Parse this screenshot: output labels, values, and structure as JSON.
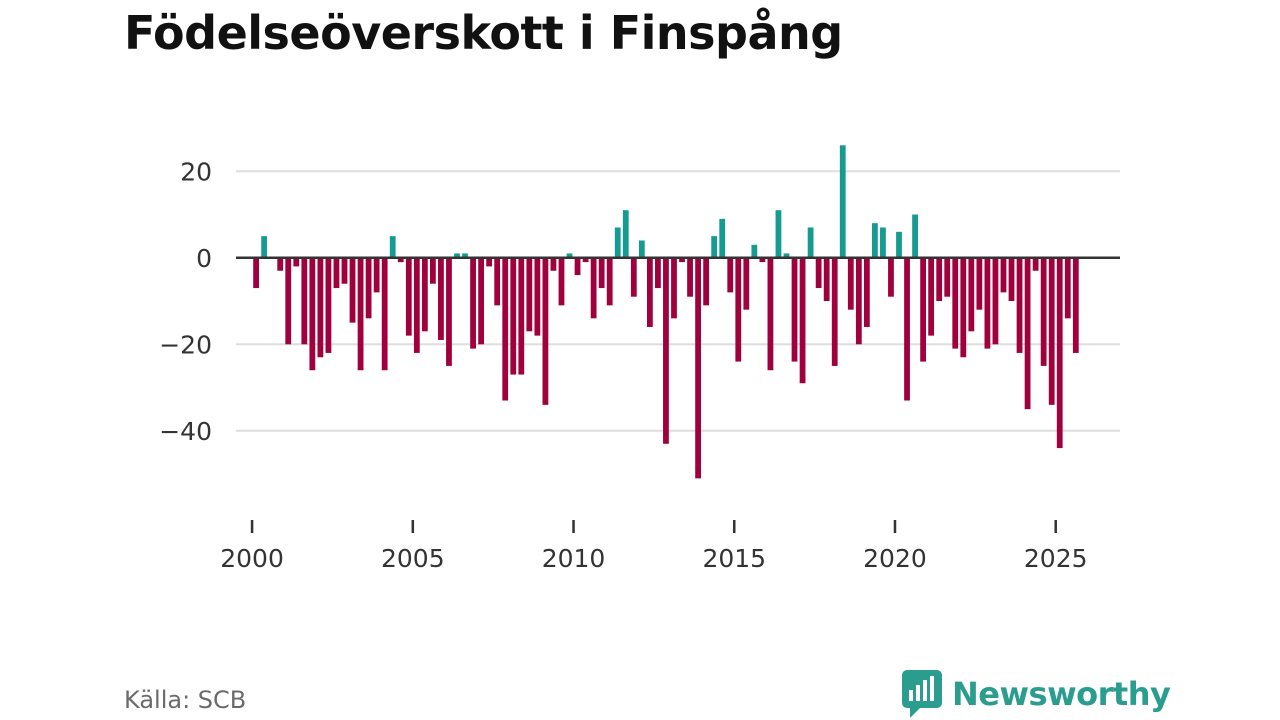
{
  "colors": {
    "positive": "#159b91",
    "negative": "#a0003c",
    "grid": "#dddddd",
    "zero_line": "#333333"
  },
  "source": "Källa: SCB",
  "brand": {
    "name": "Newsworthy",
    "icon": "bar-chart-speech-bubble-icon"
  },
  "chart_data": {
    "type": "bar",
    "title": "Födelseöverskott i Finspång",
    "xlabel": "",
    "ylabel": "",
    "ylim": [
      -56,
      30
    ],
    "xlim": [
      1999.5,
      2027
    ],
    "yticks": [
      20,
      0,
      -20,
      -40
    ],
    "ytick_labels": [
      "20",
      "0",
      "−20",
      "−40"
    ],
    "xticks": [
      2000,
      2005,
      2010,
      2015,
      2020,
      2025
    ],
    "xtick_labels": [
      "2000",
      "2005",
      "2010",
      "2015",
      "2020",
      "2025"
    ],
    "start": 2000.0,
    "step": 0.25,
    "values": [
      -7,
      5,
      0,
      -3,
      -20,
      -2,
      -20,
      -26,
      -23,
      -22,
      -7,
      -6,
      -15,
      -26,
      -14,
      -8,
      -26,
      5,
      -1,
      -18,
      -22,
      -17,
      -6,
      -19,
      -25,
      1,
      1,
      -21,
      -20,
      -2,
      -11,
      -33,
      -27,
      -27,
      -17,
      -18,
      -34,
      -3,
      -11,
      1,
      -4,
      -1,
      -14,
      -7,
      -11,
      7,
      11,
      -9,
      4,
      -16,
      -7,
      -43,
      -14,
      -1,
      -9,
      -51,
      -11,
      5,
      9,
      -8,
      -24,
      -12,
      3,
      -1,
      -26,
      11,
      1,
      -24,
      -29,
      7,
      -7,
      -10,
      -25,
      26,
      -12,
      -20,
      -16,
      8,
      7,
      -9,
      6,
      -33,
      10,
      -24,
      -18,
      -10,
      -9,
      -21,
      -23,
      -17,
      -12,
      -21,
      -20,
      -8,
      -10,
      -22,
      -35,
      -3,
      -25,
      -34,
      -44,
      -14,
      -22
    ]
  }
}
